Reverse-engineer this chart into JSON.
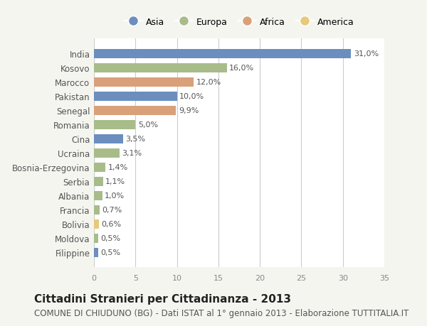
{
  "countries": [
    "India",
    "Kosovo",
    "Marocco",
    "Pakistan",
    "Senegal",
    "Romania",
    "Cina",
    "Ucraina",
    "Bosnia-Erzegovina",
    "Serbia",
    "Albania",
    "Francia",
    "Bolivia",
    "Moldova",
    "Filippine"
  ],
  "values": [
    31.0,
    16.0,
    12.0,
    10.0,
    9.9,
    5.0,
    3.5,
    3.1,
    1.4,
    1.1,
    1.0,
    0.7,
    0.6,
    0.5,
    0.5
  ],
  "labels": [
    "31,0%",
    "16,0%",
    "12,0%",
    "10,0%",
    "9,9%",
    "5,0%",
    "3,5%",
    "3,1%",
    "1,4%",
    "1,1%",
    "1,0%",
    "0,7%",
    "0,6%",
    "0,5%",
    "0,5%"
  ],
  "continents": [
    "Asia",
    "Europa",
    "Africa",
    "Asia",
    "Africa",
    "Europa",
    "Asia",
    "Europa",
    "Europa",
    "Europa",
    "Europa",
    "Europa",
    "America",
    "Europa",
    "Asia"
  ],
  "colors": {
    "Asia": "#6b8ebf",
    "Europa": "#a8bc8a",
    "Africa": "#d9a07a",
    "America": "#e8c97a"
  },
  "legend_order": [
    "Asia",
    "Europa",
    "Africa",
    "America"
  ],
  "title": "Cittadini Stranieri per Cittadinanza - 2013",
  "subtitle": "COMUNE DI CHIUDUNO (BG) - Dati ISTAT al 1° gennaio 2013 - Elaborazione TUTTITALIA.IT",
  "xlim": [
    0,
    35
  ],
  "xticks": [
    0,
    5,
    10,
    15,
    20,
    25,
    30,
    35
  ],
  "background_color": "#f5f5f0",
  "plot_background": "#ffffff",
  "grid_color": "#cccccc",
  "title_fontsize": 11,
  "subtitle_fontsize": 8.5,
  "bar_height": 0.65
}
